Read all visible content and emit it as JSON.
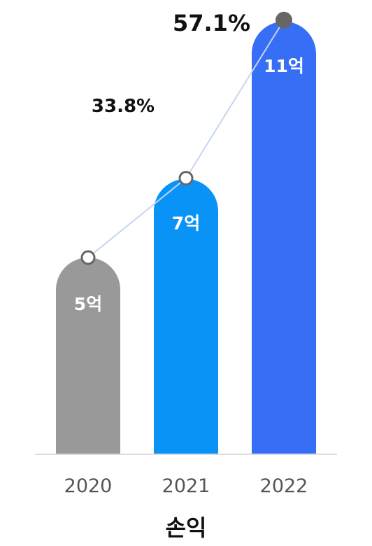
{
  "chart_data": {
    "type": "bar",
    "title": "손익",
    "categories": [
      "2020",
      "2021",
      "2022"
    ],
    "values": [
      5,
      7,
      11
    ],
    "value_labels": [
      "5억",
      "7억",
      "11억"
    ],
    "bar_colors": [
      "#999999",
      "#0a93f7",
      "#376ef6"
    ],
    "growth_line": {
      "values": [
        null,
        33.8,
        57.1
      ],
      "labels": [
        "",
        "33.8%",
        "57.1%"
      ],
      "line_color": "#c5d5f2",
      "marker_colors": [
        "#ffffff",
        "#ffffff",
        "#666666"
      ]
    },
    "legend": "none",
    "grid": false
  }
}
